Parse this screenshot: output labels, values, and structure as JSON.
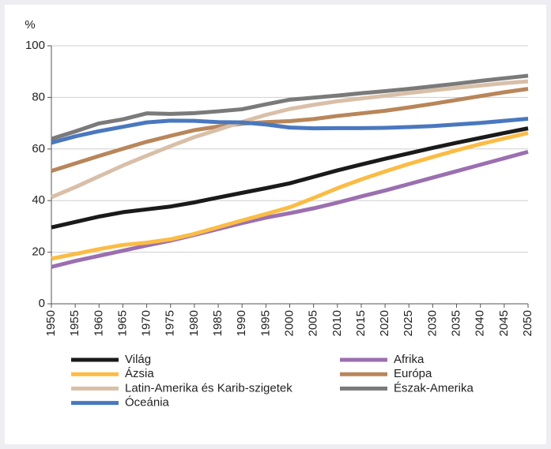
{
  "chart_data": {
    "type": "line",
    "y_axis_label": "%",
    "categories": [
      "1950",
      "1955",
      "1960",
      "1965",
      "1970",
      "1975",
      "1980",
      "1985",
      "1990",
      "1995",
      "2000",
      "2005",
      "2010",
      "2015",
      "2020",
      "2025",
      "2030",
      "2035",
      "2040",
      "2045",
      "2050"
    ],
    "ylim": [
      0,
      100
    ],
    "yticks": [
      0,
      20,
      40,
      60,
      80,
      100
    ],
    "grid": true,
    "series": [
      {
        "name": "Világ",
        "color": "#1a1a1a",
        "values": [
          29.6,
          31.7,
          33.8,
          35.5,
          36.6,
          37.7,
          39.3,
          41.2,
          43.0,
          44.8,
          46.7,
          49.2,
          51.7,
          54.0,
          56.2,
          58.3,
          60.4,
          62.4,
          64.3,
          66.2,
          68.0
        ]
      },
      {
        "name": "Afrika",
        "color": "#9b6fb0",
        "values": [
          14.3,
          16.6,
          18.6,
          20.6,
          22.6,
          24.5,
          26.7,
          29.0,
          31.3,
          33.4,
          35.1,
          37.0,
          39.2,
          41.6,
          43.9,
          46.4,
          48.9,
          51.4,
          53.9,
          56.4,
          58.9
        ]
      },
      {
        "name": "Ázsia",
        "color": "#fbbc45",
        "values": [
          17.5,
          19.3,
          21.2,
          22.8,
          23.7,
          25.0,
          27.1,
          29.7,
          32.3,
          34.8,
          37.4,
          41.0,
          44.8,
          48.2,
          51.3,
          54.2,
          56.9,
          59.5,
          61.9,
          64.1,
          66.2
        ]
      },
      {
        "name": "Európa",
        "color": "#b8865a",
        "values": [
          51.5,
          54.4,
          57.3,
          60.1,
          62.8,
          65.1,
          67.3,
          68.7,
          69.8,
          70.4,
          70.8,
          71.6,
          72.8,
          73.8,
          74.8,
          76.1,
          77.5,
          79.0,
          80.5,
          82.0,
          83.3
        ]
      },
      {
        "name": "Latin-Amerika és Karib-szigetek",
        "color": "#d9bfa8",
        "values": [
          41.3,
          45.2,
          49.4,
          53.6,
          57.4,
          61.1,
          64.6,
          67.5,
          70.5,
          73.2,
          75.5,
          77.1,
          78.5,
          79.6,
          80.6,
          81.7,
          82.7,
          83.7,
          84.6,
          85.5,
          86.2
        ]
      },
      {
        "name": "Észak-Amerika",
        "color": "#7a7a7a",
        "values": [
          63.9,
          66.8,
          69.9,
          71.5,
          73.8,
          73.6,
          73.9,
          74.6,
          75.4,
          77.3,
          79.1,
          79.9,
          80.7,
          81.6,
          82.4,
          83.3,
          84.3,
          85.3,
          86.4,
          87.4,
          88.4
        ]
      },
      {
        "name": "Óceánia",
        "color": "#4a78bf",
        "values": [
          62.4,
          64.9,
          66.9,
          68.6,
          70.3,
          71.0,
          70.9,
          70.4,
          70.3,
          69.5,
          68.3,
          68.0,
          68.1,
          68.1,
          68.2,
          68.5,
          68.9,
          69.5,
          70.1,
          70.9,
          71.7
        ]
      }
    ]
  }
}
